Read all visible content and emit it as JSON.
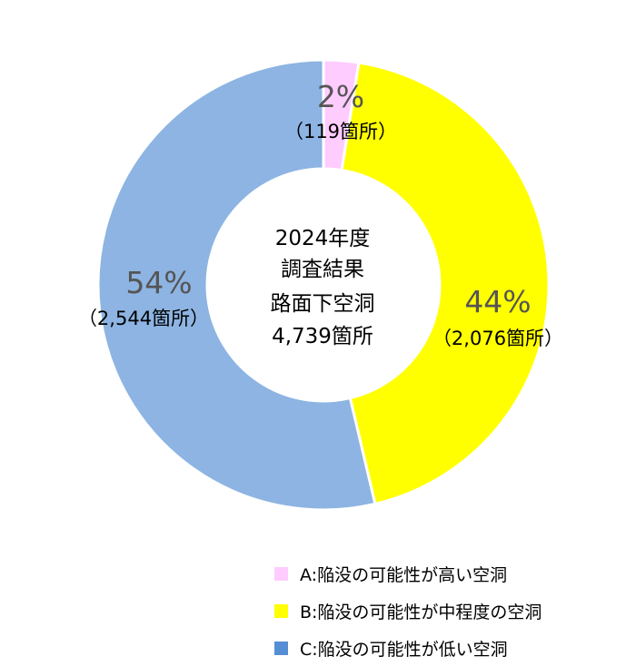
{
  "chart_data": {
    "type": "pie",
    "variant": "donut",
    "title": "",
    "center_text": [
      "2024年度",
      "調査結果",
      "路面下空洞",
      "4,739箇所"
    ],
    "slices": [
      {
        "label": "A:陥没の可能性が高い空洞",
        "percent_label": "2%",
        "count_label": "（119箇所）",
        "value": 119,
        "color": "#ffccff"
      },
      {
        "label": "B:陥没の可能性が中程度の空洞",
        "percent_label": "44%",
        "count_label": "（2,076箇所）",
        "value": 2076,
        "color": "#ffff00"
      },
      {
        "label": "C:陥没の可能性が低い空洞",
        "percent_label": "54%",
        "count_label": "（2,544箇所）",
        "value": 2544,
        "color": "#8db4e2"
      }
    ],
    "legend": {
      "placement": "bottom-right",
      "items": [
        {
          "text": "A:陥没の可能性が高い空洞",
          "color": "#ffccff"
        },
        {
          "text": "B:陥没の可能性が中程度の空洞",
          "color": "#ffff00"
        },
        {
          "text": "C:陥没の可能性が低い空洞",
          "color": "#558ed5"
        }
      ]
    }
  }
}
